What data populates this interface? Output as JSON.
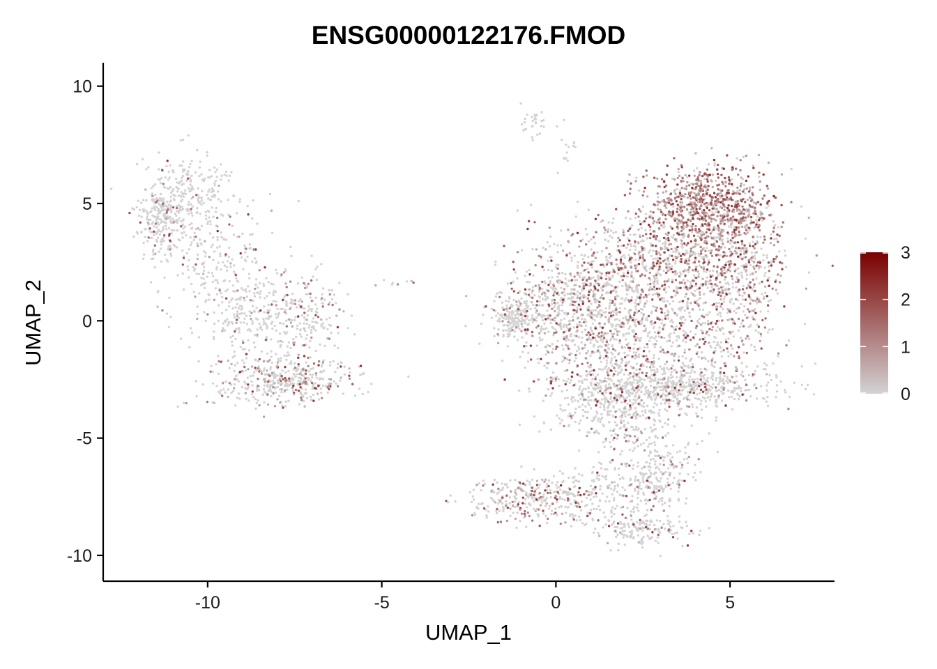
{
  "chart_data": {
    "type": "scatter",
    "title": "ENSG00000122176.FMOD",
    "xlabel": "UMAP_1",
    "ylabel": "UMAP_2",
    "xlim": [
      -13,
      8
    ],
    "ylim": [
      -11.1,
      11
    ],
    "x_ticks": [
      -10,
      -5,
      0,
      5
    ],
    "y_ticks": [
      -10,
      -5,
      0,
      5,
      10
    ],
    "x_tick_labels": [
      "-10",
      "-5",
      "0",
      "5"
    ],
    "y_tick_labels": [
      "-10",
      "-5",
      "0",
      "5",
      "10"
    ],
    "grid": false,
    "legend": {
      "placement": "right",
      "type": "colorbar",
      "min": 0,
      "max": 3,
      "ticks": [
        0,
        1,
        2,
        3
      ],
      "tick_labels": [
        "0",
        "1",
        "2",
        "3"
      ],
      "low_color": "#d3d3d3",
      "high_color": "#7a0000"
    },
    "clusters": [
      {
        "cx": -11.3,
        "cy": 4.5,
        "sx": 0.35,
        "sy": 0.8,
        "n": 260,
        "expr": 0.08
      },
      {
        "cx": -10.3,
        "cy": 5.5,
        "sx": 0.6,
        "sy": 0.8,
        "n": 180,
        "expr": 0.08
      },
      {
        "cx": -9.8,
        "cy": 2.8,
        "sx": 0.8,
        "sy": 1.2,
        "n": 200,
        "expr": 0.1
      },
      {
        "cx": -8.8,
        "cy": 0.2,
        "sx": 0.8,
        "sy": 1.0,
        "n": 220,
        "expr": 0.15
      },
      {
        "cx": -7.8,
        "cy": -2.5,
        "sx": 0.95,
        "sy": 0.55,
        "n": 420,
        "expr": 0.3
      },
      {
        "cx": -7.3,
        "cy": 0.3,
        "sx": 0.6,
        "sy": 1.0,
        "n": 200,
        "expr": 0.22
      },
      {
        "cx": -4.6,
        "cy": 1.6,
        "sx": 0.3,
        "sy": 0.05,
        "n": 8,
        "expr": 0.2
      },
      {
        "cx": -0.6,
        "cy": 8.4,
        "sx": 0.2,
        "sy": 0.3,
        "n": 30,
        "expr": 0.0
      },
      {
        "cx": 0.3,
        "cy": 7.4,
        "sx": 0.2,
        "sy": 0.5,
        "n": 15,
        "expr": 0.1
      },
      {
        "cx": -1.2,
        "cy": 0.0,
        "sx": 0.3,
        "sy": 0.4,
        "n": 160,
        "expr": 0.05
      },
      {
        "cx": 0.2,
        "cy": 0.8,
        "sx": 0.9,
        "sy": 1.2,
        "n": 550,
        "expr": 0.3
      },
      {
        "cx": 1.8,
        "cy": -0.3,
        "sx": 1.0,
        "sy": 1.5,
        "n": 650,
        "expr": 0.3
      },
      {
        "cx": 3.0,
        "cy": 2.8,
        "sx": 1.3,
        "sy": 1.1,
        "n": 650,
        "expr": 0.5
      },
      {
        "cx": 4.3,
        "cy": 5.0,
        "sx": 0.9,
        "sy": 0.8,
        "n": 650,
        "expr": 0.85
      },
      {
        "cx": 5.3,
        "cy": 3.0,
        "sx": 0.7,
        "sy": 1.2,
        "n": 350,
        "expr": 0.6
      },
      {
        "cx": 4.6,
        "cy": 0.0,
        "sx": 1.0,
        "sy": 1.3,
        "n": 450,
        "expr": 0.35
      },
      {
        "cx": 3.2,
        "cy": -2.8,
        "sx": 1.5,
        "sy": 0.5,
        "n": 650,
        "expr": 0.15
      },
      {
        "cx": 1.6,
        "cy": -3.8,
        "sx": 0.9,
        "sy": 0.8,
        "n": 300,
        "expr": 0.2
      },
      {
        "cx": 2.8,
        "cy": -6.5,
        "sx": 0.6,
        "sy": 1.2,
        "n": 300,
        "expr": 0.12
      },
      {
        "cx": -0.6,
        "cy": -7.6,
        "sx": 0.9,
        "sy": 0.5,
        "n": 300,
        "expr": 0.3
      },
      {
        "cx": 1.2,
        "cy": -7.3,
        "sx": 0.7,
        "sy": 0.7,
        "n": 150,
        "expr": 0.15
      },
      {
        "cx": 2.4,
        "cy": -8.9,
        "sx": 0.7,
        "sy": 0.3,
        "n": 140,
        "expr": 0.1
      }
    ]
  }
}
